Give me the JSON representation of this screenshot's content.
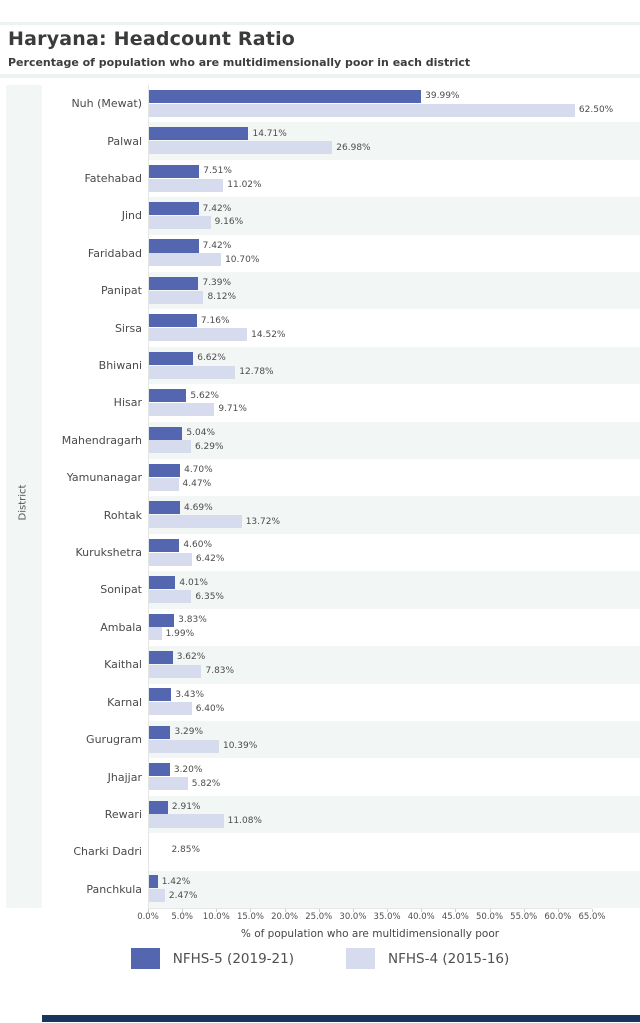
{
  "header": {
    "title": "Haryana: Headcount Ratio",
    "subtitle": "Percentage of population who are multidimensionally poor in each district"
  },
  "chart_data": {
    "type": "bar",
    "orientation": "horizontal",
    "title": "Haryana: Headcount Ratio",
    "subtitle": "Percentage of population who are multidimensionally poor in each district",
    "xlabel": "% of population who are multidimensionally poor",
    "ylabel": "District",
    "xlim": [
      0,
      65
    ],
    "x_ticks": [
      "0.0%",
      "5.0%",
      "10.0%",
      "15.0%",
      "20.0%",
      "25.0%",
      "30.0%",
      "35.0%",
      "40.0%",
      "45.0%",
      "50.0%",
      "55.0%",
      "60.0%",
      "65.0%"
    ],
    "legend_position": "bottom",
    "grid": false,
    "row_stripes": true,
    "value_labels": true,
    "categories": [
      "Nuh (Mewat)",
      "Palwal",
      "Fatehabad",
      "Jind",
      "Faridabad",
      "Panipat",
      "Sirsa",
      "Bhiwani",
      "Hisar",
      "Mahendragarh",
      "Yamunanagar",
      "Rohtak",
      "Kurukshetra",
      "Sonipat",
      "Ambala",
      "Kaithal",
      "Karnal",
      "Gurugram",
      "Jhajjar",
      "Rewari",
      "Charki Dadri",
      "Panchkula"
    ],
    "series": [
      {
        "name": "NFHS-5 (2019-21)",
        "color": "#5566b0",
        "values": [
          39.99,
          14.71,
          7.51,
          7.42,
          7.42,
          7.39,
          7.16,
          6.62,
          5.62,
          5.04,
          4.7,
          4.69,
          4.6,
          4.01,
          3.83,
          3.62,
          3.43,
          3.29,
          3.2,
          2.91,
          2.85,
          1.42
        ]
      },
      {
        "name": "NFHS-4 (2015-16)",
        "color": "#d7dbee",
        "values": [
          62.5,
          26.98,
          11.02,
          9.16,
          10.7,
          8.12,
          14.52,
          12.78,
          9.71,
          6.29,
          4.47,
          13.72,
          6.42,
          6.35,
          1.99,
          7.83,
          6.4,
          10.39,
          5.82,
          11.08,
          null,
          2.47
        ]
      }
    ]
  },
  "colors": {
    "stripe": "#f2f6f5",
    "gutter": "#f2f6f4",
    "header_band": "#eef2f0",
    "footer_bar": "#16365f",
    "title_text": "#3b3b3b"
  }
}
